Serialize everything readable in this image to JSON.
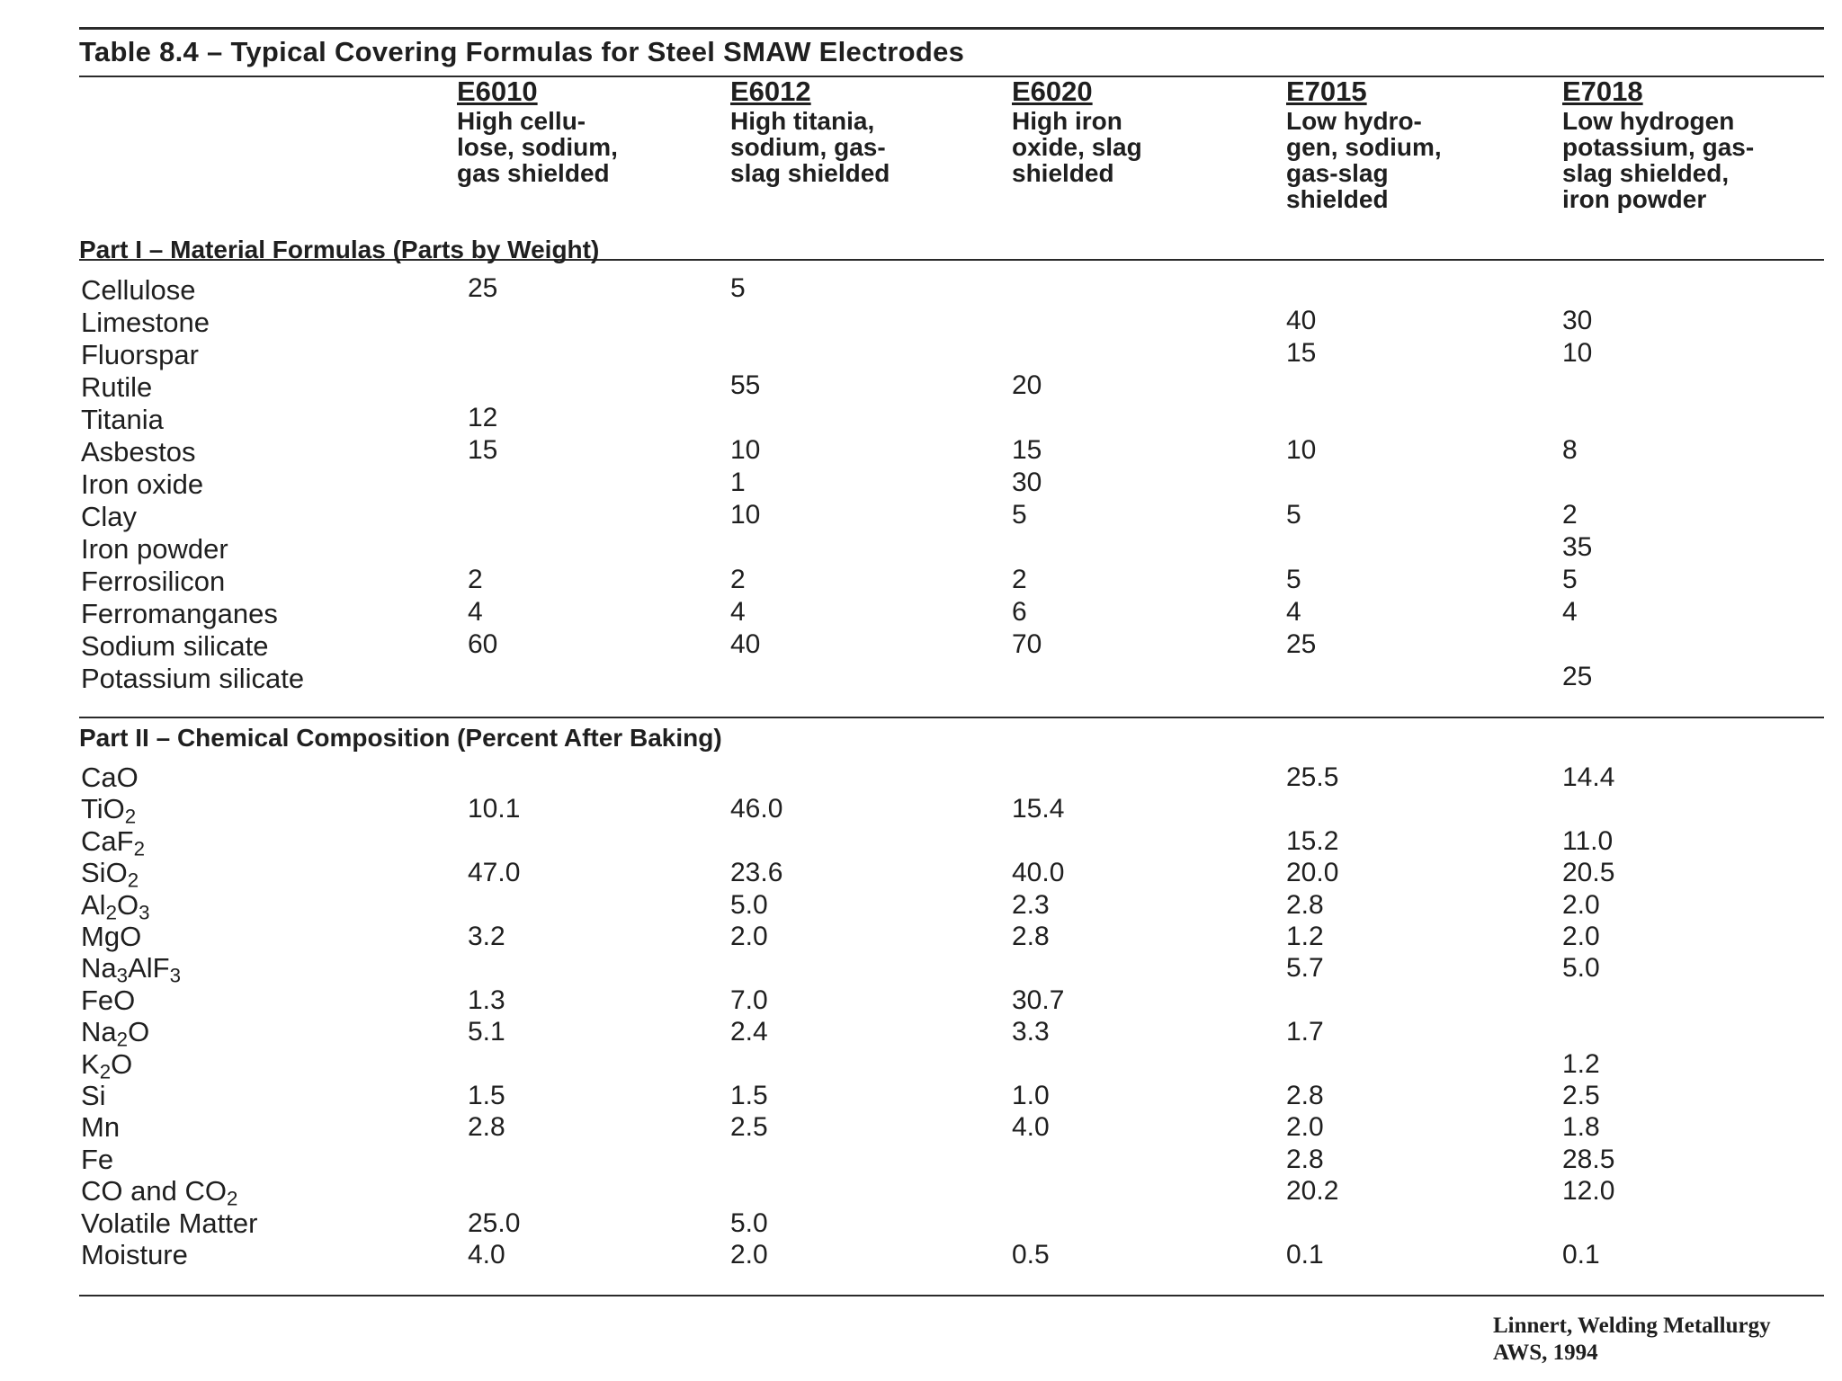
{
  "table": {
    "title": "Table 8.4 – Typical Covering Formulas for Steel SMAW Electrodes",
    "columns": [
      {
        "code": "E6010",
        "description": "High cellu-\nlose, sodium,\ngas shielded"
      },
      {
        "code": "E6012",
        "description": "High titania,\nsodium, gas-\nslag shielded"
      },
      {
        "code": "E6020",
        "description": "High iron\noxide, slag\nshielded"
      },
      {
        "code": "E7015",
        "description": "Low hydro-\ngen, sodium,\ngas-slag\nshielded"
      },
      {
        "code": "E7018",
        "description": "Low hydrogen\npotassium, gas-\nslag shielded,\niron powder"
      }
    ],
    "part1": {
      "title": "Part I – Material Formulas (Parts by Weight)",
      "rows": [
        {
          "label": "Cellulose",
          "values": [
            "25",
            "5",
            "",
            "",
            ""
          ]
        },
        {
          "label": "Limestone",
          "values": [
            "",
            "",
            "",
            "40",
            "30"
          ]
        },
        {
          "label": "Fluorspar",
          "values": [
            "",
            "",
            "",
            "15",
            "10"
          ]
        },
        {
          "label": "Rutile",
          "values": [
            "",
            "55",
            "20",
            "",
            ""
          ]
        },
        {
          "label": "Titania",
          "values": [
            "12",
            "",
            "",
            "",
            ""
          ]
        },
        {
          "label": "Asbestos",
          "values": [
            "15",
            "10",
            "15",
            "10",
            "8"
          ]
        },
        {
          "label": "Iron oxide",
          "values": [
            "",
            "1",
            "30",
            "",
            ""
          ]
        },
        {
          "label": "Clay",
          "values": [
            "",
            "10",
            "5",
            "5",
            "2"
          ]
        },
        {
          "label": "Iron powder",
          "values": [
            "",
            "",
            "",
            "",
            "35"
          ]
        },
        {
          "label": "Ferrosilicon",
          "values": [
            "2",
            "2",
            "2",
            "5",
            "5"
          ]
        },
        {
          "label": "Ferromanganes",
          "values": [
            "4",
            "4",
            "6",
            "4",
            "4"
          ]
        },
        {
          "label": "Sodium silicate",
          "values": [
            "60",
            "40",
            "70",
            "25",
            ""
          ]
        },
        {
          "label": "Potassium silicate",
          "values": [
            "",
            "",
            "",
            "",
            "25"
          ]
        }
      ]
    },
    "part2": {
      "title": "Part II – Chemical Composition (Percent After Baking)",
      "rows": [
        {
          "label": "CaO",
          "values": [
            "",
            "",
            "",
            "25.5",
            "14.4"
          ]
        },
        {
          "label": "TiO2",
          "values": [
            "10.1",
            "46.0",
            "15.4",
            "",
            ""
          ]
        },
        {
          "label": "CaF2",
          "values": [
            "",
            "",
            "",
            "15.2",
            "11.0"
          ]
        },
        {
          "label": "SiO2",
          "values": [
            "47.0",
            "23.6",
            "40.0",
            "20.0",
            "20.5"
          ]
        },
        {
          "label": "Al2O3",
          "values": [
            "",
            "5.0",
            "2.3",
            "2.8",
            "2.0"
          ]
        },
        {
          "label": "MgO",
          "values": [
            "3.2",
            "2.0",
            "2.8",
            "1.2",
            "2.0"
          ]
        },
        {
          "label": "Na3AlF3",
          "values": [
            "",
            "",
            "",
            "5.7",
            "5.0"
          ]
        },
        {
          "label": "FeO",
          "values": [
            "1.3",
            "7.0",
            "30.7",
            "",
            ""
          ]
        },
        {
          "label": "Na2O",
          "values": [
            "5.1",
            "2.4",
            "3.3",
            "1.7",
            ""
          ]
        },
        {
          "label": "K2O",
          "values": [
            "",
            "",
            "",
            "",
            "1.2"
          ]
        },
        {
          "label": "Si",
          "values": [
            "1.5",
            "1.5",
            "1.0",
            "2.8",
            "2.5"
          ]
        },
        {
          "label": "Mn",
          "values": [
            "2.8",
            "2.5",
            "4.0",
            "2.0",
            "1.8"
          ]
        },
        {
          "label": "Fe",
          "values": [
            "",
            "",
            "",
            "2.8",
            "28.5"
          ]
        },
        {
          "label": "CO and CO2",
          "values": [
            "",
            "",
            "",
            "20.2",
            "12.0"
          ]
        },
        {
          "label": "Volatile Matter",
          "values": [
            "25.0",
            "5.0",
            "",
            "",
            ""
          ]
        },
        {
          "label": "Moisture",
          "values": [
            "4.0",
            "2.0",
            "0.5",
            "0.1",
            "0.1"
          ]
        }
      ]
    }
  },
  "citation": {
    "line1": "Linnert, Welding Metallurgy",
    "line2": "AWS, 1994"
  }
}
